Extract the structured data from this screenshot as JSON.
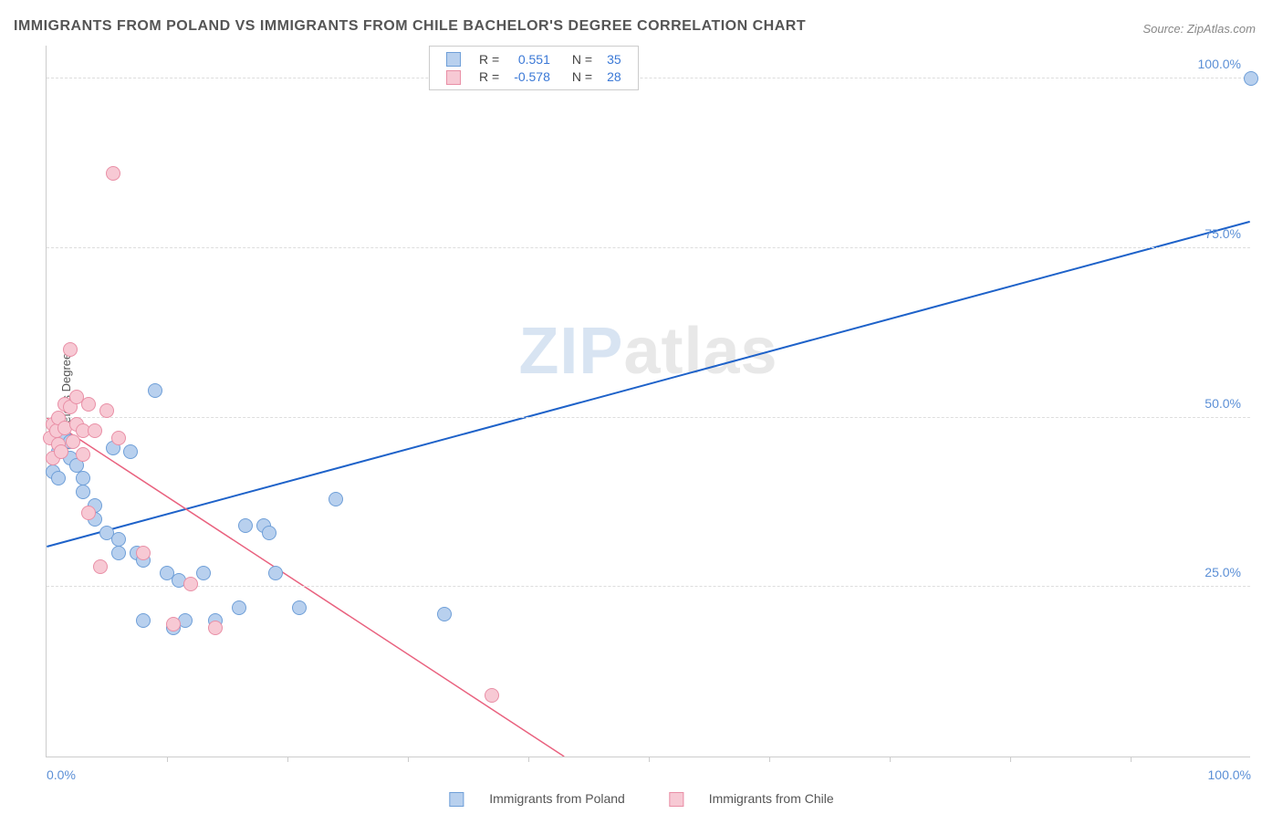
{
  "title": "IMMIGRANTS FROM POLAND VS IMMIGRANTS FROM CHILE BACHELOR'S DEGREE CORRELATION CHART",
  "source_label": "Source: ",
  "source_name": "ZipAtlas.com",
  "watermark": {
    "main": "ZIP",
    "tld": "atlas"
  },
  "chart": {
    "type": "scatter",
    "ylabel": "Bachelor's Degree",
    "xlim": [
      0,
      100
    ],
    "ylim": [
      0,
      105
    ],
    "background_color": "#ffffff",
    "grid_color": "#dddddd",
    "axis_color": "#cccccc",
    "tick_label_color": "#5b8fd6",
    "tick_fontsize": 14,
    "marker_radius": 8,
    "yticks": [
      {
        "value": 25,
        "label": "25.0%"
      },
      {
        "value": 50,
        "label": "50.0%"
      },
      {
        "value": 75,
        "label": "75.0%"
      },
      {
        "value": 100,
        "label": "100.0%"
      }
    ],
    "x_minor_ticks": [
      10,
      20,
      30,
      40,
      50,
      60,
      70,
      80,
      90
    ],
    "xtick_labels": [
      {
        "value": 0,
        "label": "0.0%"
      },
      {
        "value": 100,
        "label": "100.0%"
      }
    ],
    "series": [
      {
        "name": "Immigrants from Poland",
        "fill": "#b8d0ee",
        "stroke": "#6f9fd8",
        "line_color": "#1e62c9",
        "line_width": 2,
        "trend": {
          "x1": 0,
          "y1": 31,
          "x2": 100,
          "y2": 79
        },
        "points": [
          [
            0.5,
            42
          ],
          [
            1,
            45
          ],
          [
            1,
            41
          ],
          [
            1.5,
            47
          ],
          [
            2,
            46.5
          ],
          [
            2,
            44
          ],
          [
            2.5,
            43
          ],
          [
            3,
            39
          ],
          [
            3,
            41
          ],
          [
            4,
            37
          ],
          [
            4,
            35
          ],
          [
            5,
            33
          ],
          [
            5.5,
            45.5
          ],
          [
            6,
            32
          ],
          [
            6,
            30
          ],
          [
            7,
            45
          ],
          [
            7.5,
            30
          ],
          [
            8,
            20
          ],
          [
            8,
            29
          ],
          [
            9,
            54
          ],
          [
            10,
            27
          ],
          [
            10.5,
            19
          ],
          [
            11,
            26
          ],
          [
            11.5,
            20
          ],
          [
            13,
            27
          ],
          [
            14,
            20
          ],
          [
            16,
            22
          ],
          [
            16.5,
            34
          ],
          [
            18,
            34
          ],
          [
            18.5,
            33
          ],
          [
            19,
            27
          ],
          [
            21,
            22
          ],
          [
            24,
            38
          ],
          [
            33,
            21
          ],
          [
            100,
            100
          ]
        ]
      },
      {
        "name": "Immigrants from Chile",
        "fill": "#f7c9d4",
        "stroke": "#e98fa6",
        "line_color": "#e9627f",
        "line_width": 1.5,
        "trend": {
          "x1": 0,
          "y1": 50,
          "x2": 43,
          "y2": 0
        },
        "points": [
          [
            0.3,
            47
          ],
          [
            0.5,
            49
          ],
          [
            0.5,
            44
          ],
          [
            0.8,
            48
          ],
          [
            1,
            50
          ],
          [
            1,
            46
          ],
          [
            1.2,
            45
          ],
          [
            1.5,
            52
          ],
          [
            1.5,
            48.5
          ],
          [
            2,
            60
          ],
          [
            2,
            51.5
          ],
          [
            2.2,
            46.5
          ],
          [
            2.5,
            53
          ],
          [
            2.5,
            49
          ],
          [
            3,
            48
          ],
          [
            3,
            44.5
          ],
          [
            3.5,
            36
          ],
          [
            3.5,
            52
          ],
          [
            4,
            48
          ],
          [
            4.5,
            28
          ],
          [
            5,
            51
          ],
          [
            5.5,
            86
          ],
          [
            6,
            47
          ],
          [
            8,
            30
          ],
          [
            10.5,
            19.5
          ],
          [
            12,
            25.5
          ],
          [
            14,
            19
          ],
          [
            37,
            9
          ]
        ]
      }
    ]
  },
  "legend_top": {
    "rows": [
      {
        "series_index": 0,
        "r_label": "R =",
        "r_value": "0.551",
        "n_label": "N =",
        "n_value": "35"
      },
      {
        "series_index": 1,
        "r_label": "R =",
        "r_value": "-0.578",
        "n_label": "N =",
        "n_value": "28"
      }
    ]
  }
}
